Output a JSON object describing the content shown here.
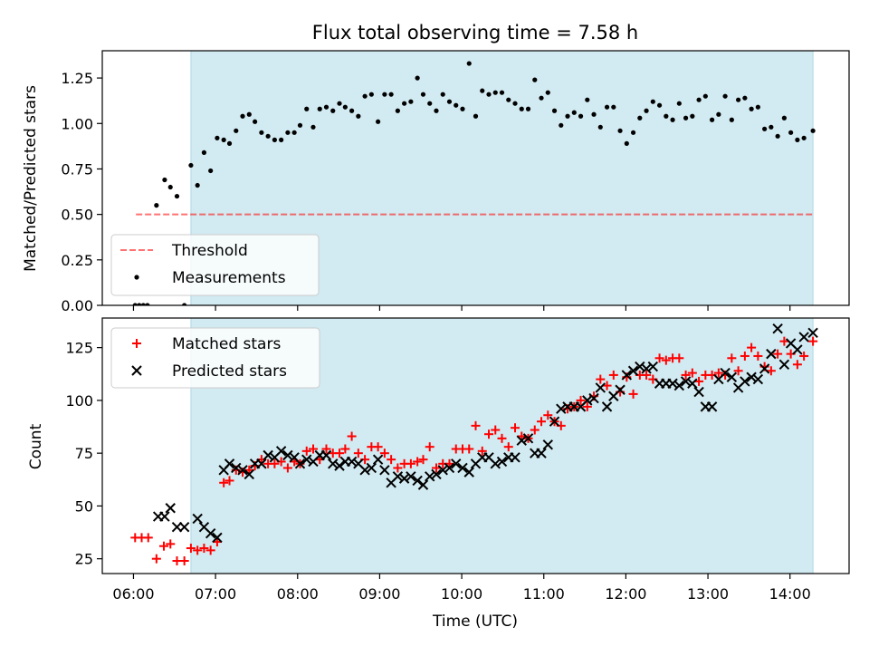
{
  "chart_data": {
    "title": "Flux total observing time = 7.58 h",
    "xlabel": "Time (UTC)",
    "x_tick_labels": [
      "06:00",
      "07:00",
      "08:00",
      "09:00",
      "10:00",
      "11:00",
      "12:00",
      "13:00",
      "14:00"
    ],
    "x_tick_hours": [
      6,
      7,
      8,
      9,
      10,
      11,
      12,
      13,
      14
    ],
    "x_range_hours": [
      5.62,
      14.72
    ],
    "shaded_interval_hours": [
      6.7,
      14.28
    ],
    "colors": {
      "shade": "#add8e6",
      "threshold": "#ff0000",
      "matched": "#ff0000",
      "predicted": "#000000",
      "measurements": "#000000"
    },
    "panels": [
      {
        "type": "scatter",
        "ylabel": "Matched/Predicted stars",
        "ylim": [
          0,
          1.4
        ],
        "y_tick_labels": [
          "0.00",
          "0.25",
          "0.50",
          "0.75",
          "1.00",
          "1.25"
        ],
        "y_ticks": [
          0,
          0.25,
          0.5,
          0.75,
          1.0,
          1.25
        ],
        "legend": {
          "position": "lower-left",
          "entries": [
            "Threshold",
            "Measurements"
          ]
        },
        "threshold": {
          "name": "Threshold",
          "value": 0.5,
          "x_range": [
            6.03,
            14.28
          ]
        },
        "measurements": {
          "name": "Measurements",
          "x": [
            6.02,
            6.07,
            6.12,
            6.17,
            6.28,
            6.38,
            6.45,
            6.53,
            6.62,
            6.7,
            6.78,
            6.86,
            6.94,
            7.02,
            7.1,
            7.17,
            7.25,
            7.33,
            7.41,
            7.48,
            7.56,
            7.64,
            7.72,
            7.8,
            7.88,
            7.96,
            8.03,
            8.11,
            8.19,
            8.27,
            8.35,
            8.43,
            8.51,
            8.58,
            8.66,
            8.74,
            8.82,
            8.9,
            8.98,
            9.06,
            9.14,
            9.22,
            9.3,
            9.38,
            9.46,
            9.53,
            9.61,
            9.69,
            9.77,
            9.85,
            9.93,
            10.01,
            10.09,
            10.17,
            10.25,
            10.33,
            10.41,
            10.49,
            10.57,
            10.65,
            10.73,
            10.81,
            10.89,
            10.97,
            11.05,
            11.13,
            11.21,
            11.29,
            11.37,
            11.45,
            11.53,
            11.61,
            11.69,
            11.77,
            11.85,
            11.93,
            12.01,
            12.09,
            12.17,
            12.25,
            12.33,
            12.41,
            12.49,
            12.57,
            12.65,
            12.73,
            12.81,
            12.89,
            12.97,
            13.05,
            13.13,
            13.21,
            13.29,
            13.37,
            13.45,
            13.53,
            13.61,
            13.69,
            13.77,
            13.85,
            13.93,
            14.01,
            14.09,
            14.17,
            14.28
          ],
          "y": [
            0.0,
            0.0,
            0.0,
            0.0,
            0.55,
            0.69,
            0.65,
            0.6,
            0.0,
            0.77,
            0.66,
            0.84,
            0.74,
            0.92,
            0.91,
            0.89,
            0.96,
            1.04,
            1.05,
            1.01,
            0.95,
            0.93,
            0.91,
            0.91,
            0.95,
            0.95,
            0.99,
            1.08,
            0.98,
            1.08,
            1.09,
            1.07,
            1.11,
            1.09,
            1.07,
            1.04,
            1.15,
            1.16,
            1.01,
            1.16,
            1.16,
            1.07,
            1.11,
            1.12,
            1.25,
            1.16,
            1.11,
            1.07,
            1.16,
            1.12,
            1.1,
            1.08,
            1.33,
            1.04,
            1.18,
            1.16,
            1.17,
            1.17,
            1.13,
            1.11,
            1.08,
            1.08,
            1.24,
            1.14,
            1.17,
            1.07,
            0.99,
            1.04,
            1.06,
            1.04,
            1.13,
            1.05,
            0.98,
            1.09,
            1.09,
            0.96,
            0.89,
            0.95,
            1.03,
            1.07,
            1.12,
            1.1,
            1.04,
            1.02,
            1.11,
            1.03,
            1.04,
            1.13,
            1.15,
            1.02,
            1.05,
            1.15,
            1.02,
            1.13,
            1.14,
            1.08,
            1.09,
            0.97,
            0.98,
            0.93,
            1.03,
            0.95,
            0.91,
            0.92,
            0.96
          ]
        }
      },
      {
        "type": "scatter",
        "ylabel": "Count",
        "ylim": [
          18,
          139
        ],
        "y_tick_labels": [
          "25",
          "50",
          "75",
          "100",
          "125"
        ],
        "y_ticks": [
          25,
          50,
          75,
          100,
          125
        ],
        "legend": {
          "position": "upper-left",
          "entries": [
            "Matched stars",
            "Predicted stars"
          ]
        },
        "series": [
          {
            "name": "Matched stars",
            "marker": "plus",
            "x": [
              6.02,
              6.1,
              6.18,
              6.28,
              6.37,
              6.45,
              6.53,
              6.62,
              6.7,
              6.78,
              6.86,
              6.94,
              7.02,
              7.1,
              7.17,
              7.25,
              7.33,
              7.41,
              7.48,
              7.56,
              7.64,
              7.72,
              7.8,
              7.88,
              7.96,
              8.03,
              8.11,
              8.19,
              8.27,
              8.35,
              8.43,
              8.51,
              8.58,
              8.66,
              8.74,
              8.82,
              8.9,
              8.98,
              9.06,
              9.14,
              9.22,
              9.3,
              9.38,
              9.46,
              9.53,
              9.61,
              9.69,
              9.77,
              9.85,
              9.93,
              10.01,
              10.09,
              10.17,
              10.25,
              10.33,
              10.41,
              10.49,
              10.57,
              10.65,
              10.73,
              10.81,
              10.89,
              10.97,
              11.05,
              11.13,
              11.21,
              11.29,
              11.37,
              11.45,
              11.53,
              11.61,
              11.69,
              11.77,
              11.85,
              11.93,
              12.01,
              12.09,
              12.17,
              12.25,
              12.33,
              12.41,
              12.49,
              12.57,
              12.65,
              12.73,
              12.81,
              12.89,
              12.97,
              13.05,
              13.13,
              13.21,
              13.29,
              13.37,
              13.45,
              13.53,
              13.61,
              13.69,
              13.77,
              13.85,
              13.93,
              14.01,
              14.09,
              14.17,
              14.28
            ],
            "y": [
              35,
              35,
              35,
              25,
              31,
              32,
              24,
              24,
              30,
              29,
              30,
              29,
              33,
              61,
              62,
              67,
              66,
              67,
              69,
              72,
              70,
              70,
              71,
              68,
              71,
              70,
              76,
              77,
              72,
              77,
              75,
              75,
              77,
              83,
              75,
              72,
              78,
              78,
              75,
              72,
              68,
              70,
              70,
              71,
              72,
              78,
              68,
              70,
              70,
              77,
              77,
              77,
              88,
              76,
              84,
              86,
              82,
              78,
              87,
              83,
              82,
              86,
              90,
              93,
              90,
              88,
              96,
              97,
              100,
              97,
              102,
              110,
              107,
              112,
              104,
              111,
              103,
              112,
              112,
              110,
              120,
              119,
              120,
              120,
              112,
              113,
              109,
              112,
              112,
              113,
              112,
              120,
              114,
              121,
              125,
              121,
              116,
              114,
              122,
              128,
              122,
              117,
              121,
              128
            ]
          },
          {
            "name": "Predicted stars",
            "marker": "x",
            "x": [
              6.3,
              6.38,
              6.45,
              6.53,
              6.62,
              6.78,
              6.86,
              6.94,
              7.02,
              7.1,
              7.17,
              7.25,
              7.33,
              7.41,
              7.48,
              7.56,
              7.64,
              7.72,
              7.8,
              7.88,
              7.96,
              8.03,
              8.11,
              8.19,
              8.27,
              8.35,
              8.43,
              8.51,
              8.58,
              8.66,
              8.74,
              8.82,
              8.9,
              8.98,
              9.06,
              9.14,
              9.22,
              9.3,
              9.38,
              9.46,
              9.53,
              9.61,
              9.69,
              9.77,
              9.85,
              9.93,
              10.01,
              10.09,
              10.17,
              10.25,
              10.33,
              10.41,
              10.49,
              10.57,
              10.65,
              10.73,
              10.81,
              10.89,
              10.97,
              11.05,
              11.13,
              11.21,
              11.29,
              11.37,
              11.45,
              11.53,
              11.61,
              11.69,
              11.77,
              11.85,
              11.93,
              12.01,
              12.09,
              12.17,
              12.25,
              12.33,
              12.41,
              12.49,
              12.57,
              12.65,
              12.73,
              12.81,
              12.89,
              12.97,
              13.05,
              13.13,
              13.21,
              13.29,
              13.37,
              13.45,
              13.53,
              13.61,
              13.69,
              13.77,
              13.85,
              13.93,
              14.01,
              14.09,
              14.17,
              14.28
            ],
            "y": [
              45,
              45,
              49,
              40,
              40,
              44,
              40,
              37,
              35,
              67,
              70,
              68,
              67,
              65,
              70,
              70,
              74,
              73,
              76,
              74,
              73,
              70,
              72,
              71,
              74,
              74,
              70,
              69,
              71,
              71,
              70,
              67,
              68,
              72,
              67,
              61,
              64,
              63,
              64,
              62,
              60,
              64,
              65,
              67,
              68,
              70,
              68,
              66,
              70,
              73,
              73,
              70,
              71,
              73,
              73,
              81,
              82,
              75,
              75,
              79,
              90,
              96,
              97,
              97,
              97,
              100,
              101,
              106,
              97,
              102,
              105,
              112,
              114,
              116,
              115,
              116,
              108,
              108,
              108,
              107,
              109,
              108,
              104,
              97,
              97,
              110,
              113,
              111,
              106,
              109,
              111,
              110,
              115,
              122,
              134,
              117,
              127,
              124,
              130,
              132
            ]
          }
        ]
      }
    ]
  }
}
